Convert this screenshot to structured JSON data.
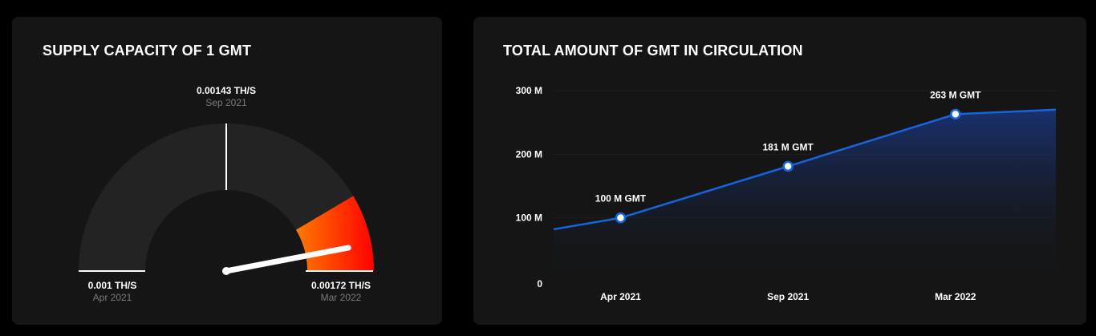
{
  "colors": {
    "background": "#000000",
    "card": "#151515",
    "gauge_track": "#232323",
    "gauge_hot_start": "#ff7a00",
    "gauge_hot_end": "#ff0000",
    "line": "#1565e0",
    "point_fill": "#ffffff",
    "label_muted": "#7a7a7a"
  },
  "gauge": {
    "title": "SUPPLY CAPACITY OF 1 GMT",
    "min_value": "0.001 TH/S",
    "min_date": "Apr 2021",
    "mid_value": "0.00143 TH/S",
    "mid_date": "Sep 2021",
    "max_value": "0.00172 TH/S",
    "max_date": "Mar 2022"
  },
  "circulation": {
    "title": "TOTAL AMOUNT OF GMT IN CIRCULATION"
  },
  "chart_data": [
    {
      "type": "gauge",
      "title": "SUPPLY CAPACITY OF 1 GMT",
      "unit": "TH/S",
      "markers": [
        {
          "label": "0.001 TH/S",
          "value": 0.001,
          "date": "Apr 2021"
        },
        {
          "label": "0.00143 TH/S",
          "value": 0.00143,
          "date": "Sep 2021"
        },
        {
          "label": "0.00172 TH/S",
          "value": 0.00172,
          "date": "Mar 2022"
        }
      ],
      "highlight_fraction_start": 0.83,
      "needle_fraction": 0.94
    },
    {
      "type": "area",
      "title": "TOTAL AMOUNT OF GMT IN CIRCULATION",
      "categories": [
        "Apr 2021",
        "Sep 2021",
        "Mar 2022"
      ],
      "x": [
        2,
        7,
        12
      ],
      "xlim": [
        0,
        15
      ],
      "series": [
        {
          "values": [
            82,
            100,
            181,
            263,
            270
          ],
          "x": [
            0,
            2,
            7,
            12,
            15
          ],
          "point_labels": [
            "",
            "100 M GMT",
            "181 M GMT",
            "263 M GMT",
            ""
          ],
          "marked": [
            false,
            true,
            true,
            true,
            false
          ]
        }
      ],
      "yticks": [
        0,
        100,
        200,
        300
      ],
      "ytick_labels": [
        "0",
        "100 M",
        "200 M",
        "300 M"
      ],
      "ylim": [
        0,
        300
      ],
      "grid": true
    }
  ]
}
